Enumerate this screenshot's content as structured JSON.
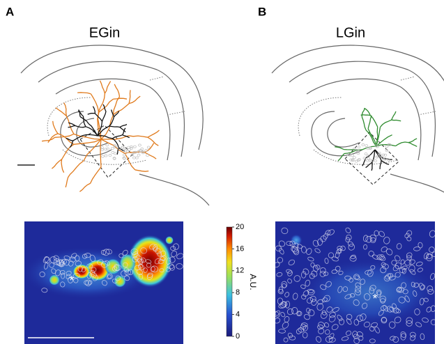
{
  "panels": [
    {
      "letter": "A",
      "title": "EGin",
      "asterisk": "*"
    },
    {
      "letter": "B",
      "title": "LGin",
      "asterisk": "*"
    }
  ],
  "colorbar": {
    "label": "A.U.",
    "lim": [
      0,
      20
    ],
    "ticks": [
      0,
      4,
      8,
      12,
      16,
      20
    ]
  }
}
